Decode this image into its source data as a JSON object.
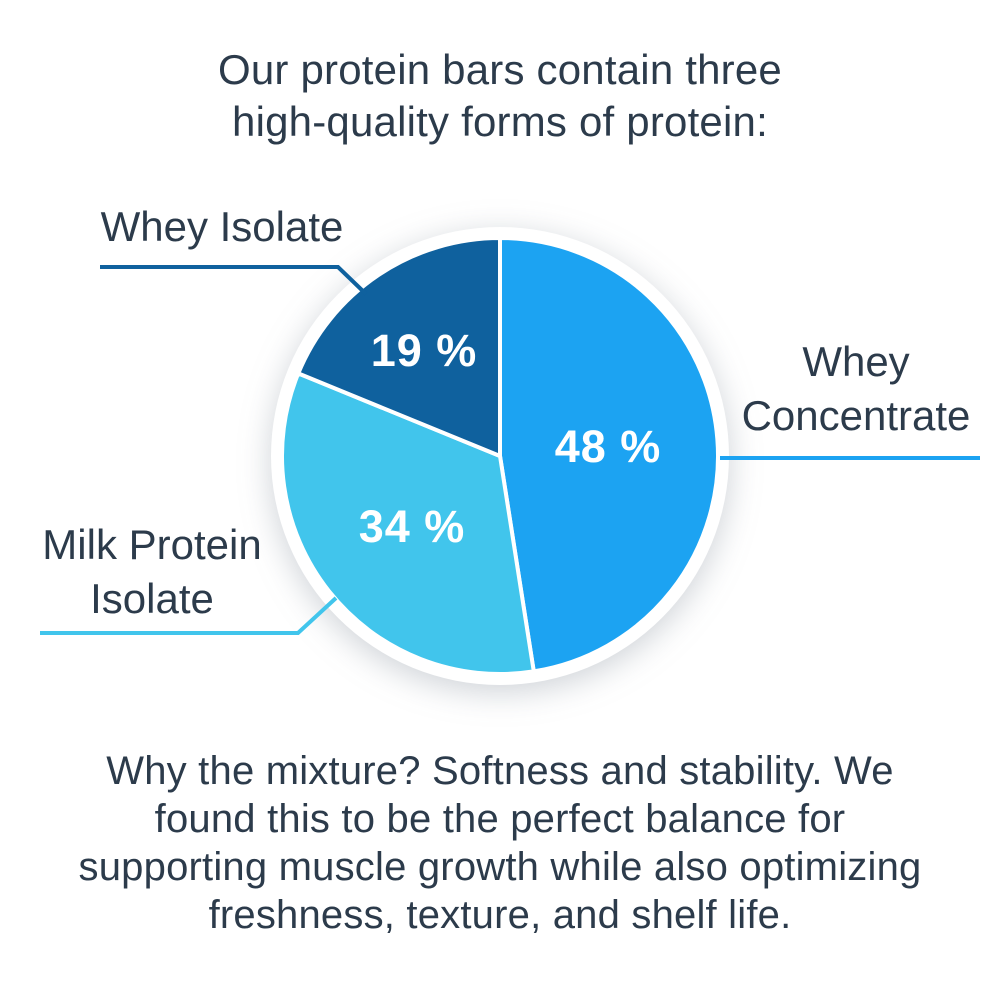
{
  "theme": {
    "background": "#FFFFFF",
    "text_color": "#2C3B4B",
    "percent_text_color": "#FFFFFF",
    "pie_ring_color": "#FFFFFF"
  },
  "title": {
    "lines": [
      "Our protein bars contain three",
      "high-quality forms of protein:"
    ]
  },
  "chart_data": {
    "type": "pie",
    "title": "Our protein bars contain three high-quality forms of protein:",
    "start_angle": "12 o'clock",
    "direction": "clockwise",
    "legend_position": "callout labels with leader lines",
    "slices": [
      {
        "label": "Whey Concentrate",
        "value": 48,
        "display": "48 %",
        "color": "#1CA3F2"
      },
      {
        "label": "Milk Protein Isolate",
        "value": 34,
        "display": "34 %",
        "color": "#41C5EC"
      },
      {
        "label": "Whey Isolate",
        "value": 19,
        "display": "19 %",
        "color": "#0F619E"
      }
    ]
  },
  "callouts": {
    "whey_isolate": {
      "label": "Whey Isolate",
      "line_color": "#0F619E"
    },
    "whey_concentrate": {
      "lines": [
        "Whey",
        "Concentrate"
      ],
      "line_color": "#1CA3F2"
    },
    "milk_protein": {
      "lines": [
        "Milk Protein",
        "Isolate"
      ],
      "line_color": "#41C5EC"
    }
  },
  "footer": {
    "lines": [
      "Why the mixture? Softness and stability. We",
      "found this to be the perfect balance for",
      "supporting muscle growth while also optimizing",
      "freshness, texture, and shelf life."
    ]
  }
}
